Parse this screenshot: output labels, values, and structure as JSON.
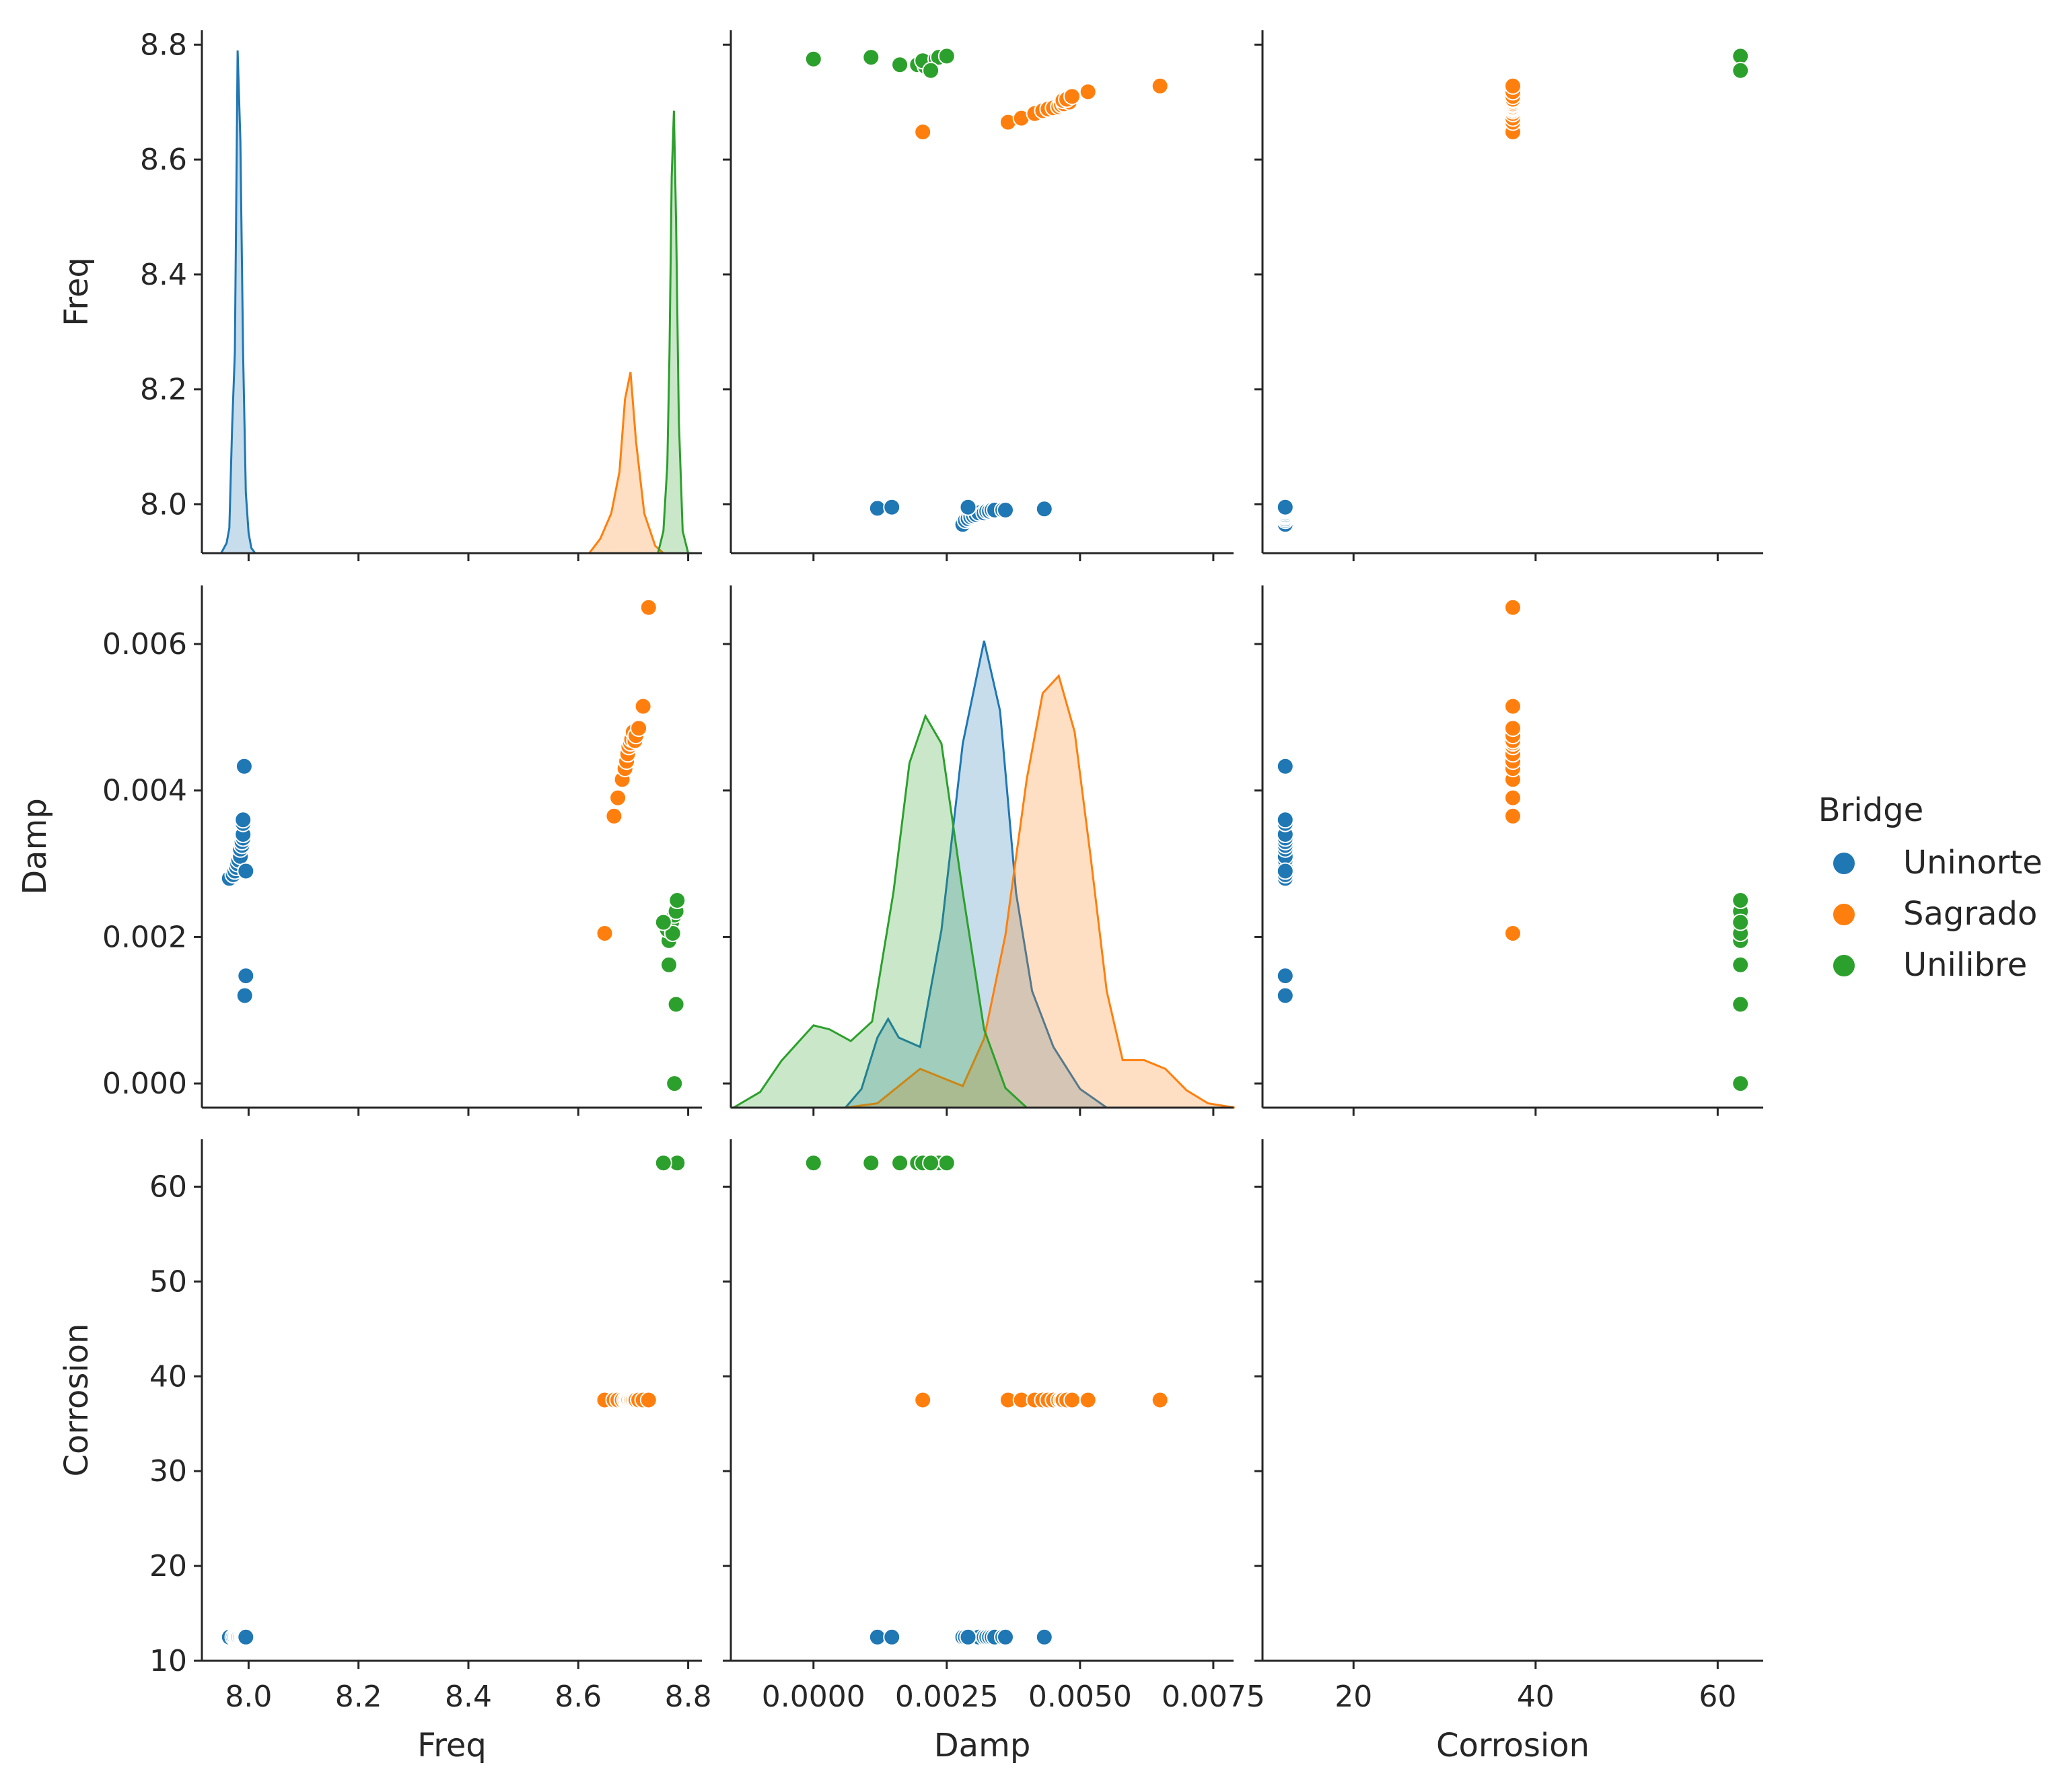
{
  "chart_data": {
    "type": "pairplot",
    "variables": [
      "Freq",
      "Damp",
      "Corrosion"
    ],
    "hue": "Bridge",
    "legend": {
      "title": "Bridge",
      "placement": "right",
      "entries": [
        {
          "name": "Uninorte",
          "color": "#1f77b4"
        },
        {
          "name": "Sagrado",
          "color": "#ff7f0e"
        },
        {
          "name": "Unilibre",
          "color": "#2ca02c"
        }
      ]
    },
    "axes": {
      "Freq": {
        "label": "Freq",
        "range": [
          7.915,
          8.825
        ],
        "ticks": [
          8.0,
          8.2,
          8.4,
          8.6,
          8.8
        ],
        "tick_labels": [
          "8.0",
          "8.2",
          "8.4",
          "8.6",
          "8.8"
        ]
      },
      "Damp": {
        "label": "Damp",
        "range_x": [
          -0.00155,
          0.00788
        ],
        "range_y": [
          -0.00033,
          0.0068
        ],
        "ticks_x": [
          0.0,
          0.0025,
          0.005,
          0.0075
        ],
        "tick_labels_x": [
          "0.0000",
          "0.0025",
          "0.0050",
          "0.0075"
        ],
        "ticks_y": [
          0.0,
          0.002,
          0.004,
          0.006
        ],
        "tick_labels_y": [
          "0.000",
          "0.002",
          "0.004",
          "0.006"
        ]
      },
      "Corrosion": {
        "label": "Corrosion",
        "range_x": [
          10,
          65
        ],
        "range_y": [
          10,
          65
        ],
        "ticks_x": [
          20,
          40,
          60
        ],
        "tick_labels_x": [
          "20",
          "40",
          "60"
        ],
        "ticks_y": [
          10,
          20,
          30,
          40,
          50,
          60
        ],
        "tick_labels_y": [
          "10",
          "20",
          "30",
          "40",
          "50",
          "60"
        ]
      }
    },
    "series": [
      {
        "name": "Uninorte",
        "color": "#1f77b4",
        "corrosion": 12.5,
        "freq": [
          7.965,
          7.972,
          7.975,
          7.978,
          7.98,
          7.982,
          7.985,
          7.985,
          7.988,
          7.988,
          7.99,
          7.99,
          7.99,
          7.99,
          7.992,
          7.993,
          7.995,
          7.995
        ],
        "damp": [
          0.0028,
          0.00285,
          0.0029,
          0.00295,
          0.003,
          0.00305,
          0.0031,
          0.0032,
          0.00325,
          0.0033,
          0.00335,
          0.0034,
          0.00355,
          0.0036,
          0.00433,
          0.0012,
          0.00147,
          0.0029
        ],
        "kde_freq": {
          "x": [
            7.95,
            7.96,
            7.965,
            7.97,
            7.975,
            7.98,
            7.985,
            7.99,
            7.995,
            8.0,
            8.005,
            8.012
          ],
          "y": [
            0,
            0.02,
            0.05,
            0.25,
            0.4,
            1.0,
            0.82,
            0.4,
            0.12,
            0.04,
            0.01,
            0
          ]
        },
        "kde_damp": {
          "x": [
            0.0006,
            0.0009,
            0.0012,
            0.0014,
            0.0016,
            0.002,
            0.0024,
            0.0028,
            0.0032,
            0.0035,
            0.0038,
            0.0041,
            0.0045,
            0.005,
            0.0055
          ],
          "y": [
            0,
            0.04,
            0.15,
            0.19,
            0.15,
            0.13,
            0.38,
            0.78,
            1.0,
            0.85,
            0.46,
            0.25,
            0.13,
            0.04,
            0
          ]
        }
      },
      {
        "name": "Sagrado",
        "color": "#ff7f0e",
        "corrosion": 37.5,
        "freq": [
          8.648,
          8.665,
          8.672,
          8.68,
          8.685,
          8.688,
          8.69,
          8.692,
          8.695,
          8.697,
          8.7,
          8.703,
          8.705,
          8.71,
          8.718,
          8.728
        ],
        "damp": [
          0.00205,
          0.00365,
          0.0039,
          0.00415,
          0.0043,
          0.0044,
          0.0045,
          0.0046,
          0.00465,
          0.0047,
          0.0048,
          0.00468,
          0.00475,
          0.00485,
          0.00515,
          0.0065
        ],
        "kde_freq": {
          "x": [
            8.62,
            8.64,
            8.66,
            8.675,
            8.685,
            8.695,
            8.705,
            8.72,
            8.74,
            8.755
          ],
          "y": [
            0,
            0.08,
            0.22,
            0.45,
            0.85,
            1.0,
            0.62,
            0.22,
            0.04,
            0
          ]
        },
        "kde_damp": {
          "x": [
            0.0006,
            0.0012,
            0.0016,
            0.002,
            0.0024,
            0.0028,
            0.0032,
            0.0036,
            0.004,
            0.0043,
            0.0046,
            0.0049,
            0.0052,
            0.0055,
            0.0058,
            0.0062,
            0.0066,
            0.007,
            0.0074,
            0.0079
          ],
          "y": [
            0,
            0.01,
            0.05,
            0.09,
            0.07,
            0.05,
            0.16,
            0.4,
            0.76,
            0.96,
            1.0,
            0.87,
            0.58,
            0.27,
            0.11,
            0.11,
            0.09,
            0.04,
            0.01,
            0
          ]
        }
      },
      {
        "name": "Unilibre",
        "color": "#2ca02c",
        "corrosion": 62.5,
        "freq": [
          8.775,
          8.778,
          8.765,
          8.765,
          8.762,
          8.77,
          8.772,
          8.775,
          8.778,
          8.78,
          8.755
        ],
        "damp": [
          0.0,
          0.00108,
          0.00162,
          0.00195,
          0.0021,
          0.0022,
          0.00205,
          0.0023,
          0.00235,
          0.0025,
          0.0022
        ],
        "kde_freq": {
          "x": [
            8.745,
            8.755,
            8.762,
            8.766,
            8.77,
            8.774,
            8.778,
            8.783,
            8.79,
            8.8
          ],
          "y": [
            0,
            0.05,
            0.2,
            0.45,
            0.85,
            1.0,
            0.75,
            0.3,
            0.05,
            0
          ]
        },
        "kde_damp": {
          "x": [
            -0.0015,
            -0.001,
            -0.0006,
            -0.0002,
            0.0,
            0.0003,
            0.0007,
            0.0011,
            0.0015,
            0.0018,
            0.0021,
            0.0024,
            0.0028,
            0.0032,
            0.0036,
            0.004
          ],
          "y": [
            0,
            0.04,
            0.12,
            0.18,
            0.21,
            0.2,
            0.17,
            0.22,
            0.55,
            0.88,
            1.0,
            0.93,
            0.55,
            0.2,
            0.05,
            0
          ]
        }
      }
    ]
  }
}
